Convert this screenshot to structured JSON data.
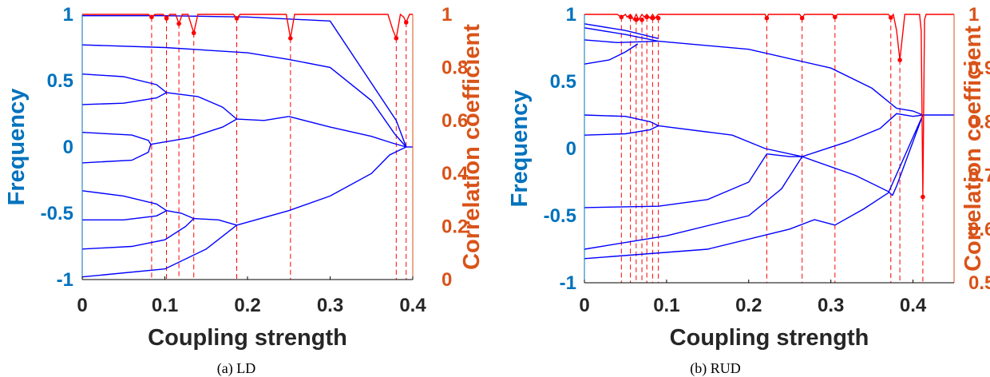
{
  "colors": {
    "left_axis": "#0072BD",
    "right_axis": "#D95319",
    "frequency_lines": "#0000ff",
    "correlation_line": "#ff0000"
  },
  "chart_data": [
    {
      "type": "line",
      "caption": "(a)    LD",
      "xlabel": "Coupling strength",
      "ylabel_left": "Frequency",
      "ylabel_right": "Correlation coefficient",
      "xlim": [
        0,
        0.4
      ],
      "ylim_left": [
        -1,
        1
      ],
      "ylim_right": [
        0,
        1
      ],
      "xticks": [
        "0",
        "0.1",
        "0.2",
        "0.3",
        "0.4"
      ],
      "yticks_left": [
        "-1",
        "-0.5",
        "0",
        "0.5",
        "1"
      ],
      "yticks_right": [
        "0",
        "0.2",
        "0.4",
        "0.6",
        "0.8",
        "1"
      ],
      "grid": false,
      "frequency_series": [
        {
          "x": [
            0,
            0.1,
            0.2,
            0.3,
            0.38,
            0.392
          ],
          "y": [
            0.99,
            0.99,
            0.98,
            0.95,
            0.2,
            0.0
          ]
        },
        {
          "x": [
            0,
            0.1,
            0.2,
            0.25,
            0.3,
            0.35,
            0.378,
            0.392
          ],
          "y": [
            0.77,
            0.75,
            0.71,
            0.66,
            0.6,
            0.35,
            0.1,
            0.0
          ]
        },
        {
          "x": [
            0,
            0.05,
            0.09,
            0.102
          ],
          "y": [
            0.55,
            0.53,
            0.47,
            0.41
          ]
        },
        {
          "x": [
            0,
            0.05,
            0.09,
            0.102
          ],
          "y": [
            0.32,
            0.33,
            0.37,
            0.41
          ]
        },
        {
          "x": [
            0.102,
            0.14,
            0.17,
            0.187
          ],
          "y": [
            0.41,
            0.38,
            0.3,
            0.21
          ]
        },
        {
          "x": [
            0,
            0.06,
            0.08,
            0.083
          ],
          "y": [
            0.11,
            0.09,
            0.05,
            0.02
          ]
        },
        {
          "x": [
            0,
            0.06,
            0.08,
            0.083
          ],
          "y": [
            -0.12,
            -0.1,
            -0.04,
            0.02
          ]
        },
        {
          "x": [
            0.083,
            0.13,
            0.17,
            0.187
          ],
          "y": [
            0.02,
            0.07,
            0.15,
            0.21
          ]
        },
        {
          "x": [
            0.187,
            0.22,
            0.25
          ],
          "y": [
            0.21,
            0.2,
            0.23
          ]
        },
        {
          "x": [
            0.25,
            0.3,
            0.35,
            0.375,
            0.392
          ],
          "y": [
            0.23,
            0.15,
            0.08,
            0.03,
            0.0
          ]
        },
        {
          "x": [
            0,
            0.05,
            0.09,
            0.102
          ],
          "y": [
            -0.33,
            -0.37,
            -0.43,
            -0.48
          ]
        },
        {
          "x": [
            0,
            0.05,
            0.09,
            0.102
          ],
          "y": [
            -0.55,
            -0.55,
            -0.52,
            -0.48
          ]
        },
        {
          "x": [
            0.102,
            0.12,
            0.135
          ],
          "y": [
            -0.48,
            -0.5,
            -0.54
          ]
        },
        {
          "x": [
            0,
            0.06,
            0.1,
            0.125,
            0.135
          ],
          "y": [
            -0.77,
            -0.75,
            -0.7,
            -0.6,
            -0.54
          ]
        },
        {
          "x": [
            0.135,
            0.165,
            0.187
          ],
          "y": [
            -0.54,
            -0.55,
            -0.59
          ]
        },
        {
          "x": [
            0,
            0.1,
            0.15,
            0.187
          ],
          "y": [
            -0.98,
            -0.92,
            -0.77,
            -0.59
          ]
        },
        {
          "x": [
            0.187,
            0.25,
            0.3,
            0.35,
            0.372,
            0.392
          ],
          "y": [
            -0.59,
            -0.48,
            -0.37,
            -0.2,
            -0.06,
            0.0
          ]
        },
        {
          "x": [
            0.392,
            0.4
          ],
          "y": [
            0.0,
            0.0
          ]
        }
      ],
      "correlation_series": {
        "x": [
          0,
          0.08,
          0.084,
          0.088,
          0.098,
          0.102,
          0.106,
          0.113,
          0.117,
          0.121,
          0.128,
          0.135,
          0.14,
          0.183,
          0.187,
          0.191,
          0.247,
          0.252,
          0.257,
          0.37,
          0.376,
          0.38,
          0.385,
          0.389,
          0.392,
          0.396,
          0.4
        ],
        "y": [
          1,
          1,
          0.99,
          1,
          1,
          0.985,
          1,
          1,
          0.965,
          1,
          1,
          0.93,
          1,
          1,
          0.985,
          1,
          1,
          0.91,
          1,
          1,
          0.94,
          0.91,
          1,
          0.99,
          0.97,
          1,
          1
        ]
      },
      "correlation_points": {
        "x": [
          0.084,
          0.102,
          0.117,
          0.135,
          0.187,
          0.252,
          0.38,
          0.392
        ],
        "y": [
          0.99,
          0.985,
          0.965,
          0.93,
          0.985,
          0.91,
          0.91,
          0.97
        ]
      },
      "markers_x": [
        0.084,
        0.102,
        0.117,
        0.135,
        0.187,
        0.252,
        0.38,
        0.392
      ]
    },
    {
      "type": "line",
      "caption": "(b)    RUD",
      "xlabel": "Coupling strength",
      "ylabel_left": "Frequency",
      "ylabel_right": "Correlation coefficient",
      "xlim": [
        0,
        0.45
      ],
      "ylim_left": [
        -1,
        1
      ],
      "ylim_right": [
        0.5,
        1
      ],
      "xticks": [
        "0",
        "0.1",
        "0.2",
        "0.3",
        "0.4"
      ],
      "yticks_left": [
        "-1",
        "-0.5",
        "0",
        "0.5",
        "1"
      ],
      "yticks_right": [
        "0.5",
        "0.6",
        "0.7",
        "0.8",
        "0.9",
        "1"
      ],
      "grid": false,
      "frequency_series": [
        {
          "x": [
            0,
            0.05,
            0.09
          ],
          "y": [
            0.93,
            0.88,
            0.82
          ]
        },
        {
          "x": [
            0,
            0.05,
            0.09
          ],
          "y": [
            0.9,
            0.85,
            0.8
          ]
        },
        {
          "x": [
            0,
            0.04,
            0.09
          ],
          "y": [
            0.81,
            0.79,
            0.8
          ]
        },
        {
          "x": [
            0,
            0.03,
            0.05,
            0.065
          ],
          "y": [
            0.63,
            0.66,
            0.72,
            0.78
          ]
        },
        {
          "x": [
            0.09,
            0.2,
            0.3,
            0.35,
            0.38
          ],
          "y": [
            0.8,
            0.74,
            0.6,
            0.45,
            0.3
          ]
        },
        {
          "x": [
            0.38,
            0.4,
            0.412
          ],
          "y": [
            0.3,
            0.28,
            0.25
          ]
        },
        {
          "x": [
            0.412,
            0.45
          ],
          "y": [
            0.25,
            0.25
          ]
        },
        {
          "x": [
            0,
            0.05,
            0.08,
            0.09
          ],
          "y": [
            0.25,
            0.24,
            0.2,
            0.17
          ]
        },
        {
          "x": [
            0,
            0.05,
            0.08,
            0.09
          ],
          "y": [
            0.1,
            0.11,
            0.14,
            0.17
          ]
        },
        {
          "x": [
            0.09,
            0.18,
            0.22,
            0.265
          ],
          "y": [
            0.17,
            0.1,
            0.0,
            -0.06
          ]
        },
        {
          "x": [
            0.265,
            0.32,
            0.36,
            0.38,
            0.4,
            0.412
          ],
          "y": [
            -0.06,
            0.05,
            0.15,
            0.26,
            0.24,
            0.25
          ]
        },
        {
          "x": [
            0,
            0.09,
            0.15,
            0.2,
            0.222
          ],
          "y": [
            -0.44,
            -0.43,
            -0.38,
            -0.25,
            -0.04
          ]
        },
        {
          "x": [
            0.222,
            0.25,
            0.265
          ],
          "y": [
            -0.04,
            -0.06,
            -0.06
          ]
        },
        {
          "x": [
            0,
            0.1,
            0.2,
            0.24,
            0.265
          ],
          "y": [
            -0.75,
            -0.65,
            -0.5,
            -0.3,
            -0.06
          ]
        },
        {
          "x": [
            0.265,
            0.33,
            0.37,
            0.375
          ],
          "y": [
            -0.06,
            -0.2,
            -0.32,
            -0.35
          ]
        },
        {
          "x": [
            0.375,
            0.38,
            0.412
          ],
          "y": [
            -0.35,
            -0.28,
            0.25
          ]
        },
        {
          "x": [
            0,
            0.15,
            0.25,
            0.28,
            0.305
          ],
          "y": [
            -0.82,
            -0.75,
            -0.6,
            -0.53,
            -0.57
          ]
        },
        {
          "x": [
            0.305,
            0.34,
            0.37,
            0.412
          ],
          "y": [
            -0.57,
            -0.45,
            -0.33,
            0.25
          ]
        }
      ],
      "correlation_series": {
        "x": [
          0,
          0.04,
          0.045,
          0.05,
          0.052,
          0.056,
          0.06,
          0.063,
          0.066,
          0.07,
          0.073,
          0.076,
          0.08,
          0.083,
          0.086,
          0.09,
          0.22,
          0.222,
          0.224,
          0.262,
          0.265,
          0.268,
          0.302,
          0.305,
          0.308,
          0.37,
          0.373,
          0.376,
          0.38,
          0.384,
          0.39,
          0.408,
          0.41,
          0.412,
          0.414,
          0.416,
          0.45
        ],
        "y": [
          1,
          1,
          0.995,
          1,
          0.995,
          1,
          0.99,
          1,
          0.99,
          1,
          0.995,
          1,
          0.993,
          1,
          0.993,
          1,
          1,
          0.993,
          1,
          1,
          0.993,
          1,
          1,
          0.995,
          1,
          1,
          0.994,
          1,
          0.97,
          0.915,
          1,
          1,
          0.97,
          0.66,
          0.99,
          1,
          1
        ]
      },
      "correlation_points": {
        "x": [
          0.045,
          0.056,
          0.063,
          0.07,
          0.076,
          0.083,
          0.09,
          0.222,
          0.265,
          0.305,
          0.373,
          0.384,
          0.412
        ],
        "y": [
          0.995,
          0.995,
          0.99,
          0.99,
          0.995,
          0.993,
          0.993,
          0.993,
          0.993,
          0.995,
          0.994,
          0.915,
          0.66
        ]
      },
      "markers_x": [
        0.045,
        0.056,
        0.063,
        0.07,
        0.076,
        0.083,
        0.09,
        0.222,
        0.265,
        0.305,
        0.373,
        0.384,
        0.412
      ]
    }
  ]
}
